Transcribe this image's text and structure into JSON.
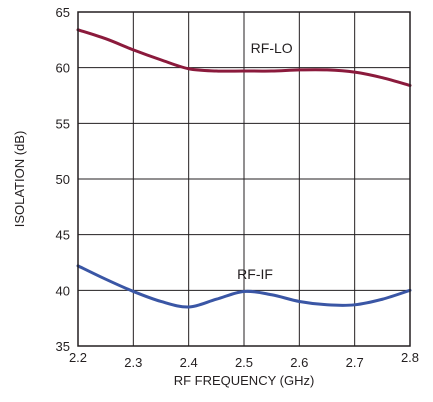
{
  "chart_data": {
    "type": "line",
    "title": "",
    "xlabel": "RF FREQUENCY (GHz)",
    "ylabel": "ISOLATION (dB)",
    "xlim": [
      2.2,
      2.8
    ],
    "ylim": [
      35,
      65
    ],
    "xticks": [
      2.2,
      2.3,
      2.4,
      2.5,
      2.6,
      2.7,
      2.8
    ],
    "yticks": [
      35,
      40,
      45,
      50,
      55,
      60,
      65
    ],
    "xtick_labels": [
      "2.2",
      "2.3",
      "2.4",
      "2.5",
      "2.6",
      "2.7",
      "2.8"
    ],
    "ytick_labels": [
      "35",
      "40",
      "45",
      "50",
      "55",
      "60",
      "65"
    ],
    "grid": true,
    "legend": "none",
    "series": [
      {
        "name": "RF-LO",
        "color": "#8b1a3c",
        "label_position": {
          "x": 2.55,
          "y": 61.3
        },
        "x": [
          2.2,
          2.25,
          2.3,
          2.35,
          2.4,
          2.45,
          2.5,
          2.55,
          2.6,
          2.65,
          2.7,
          2.75,
          2.8
        ],
        "y": [
          63.4,
          62.6,
          61.6,
          60.7,
          59.9,
          59.7,
          59.7,
          59.7,
          59.8,
          59.8,
          59.6,
          59.1,
          58.4
        ]
      },
      {
        "name": "RF-IF",
        "color": "#3a56a5",
        "label_position": {
          "x": 2.52,
          "y": 41.0
        },
        "x": [
          2.2,
          2.25,
          2.3,
          2.35,
          2.4,
          2.45,
          2.5,
          2.55,
          2.6,
          2.65,
          2.7,
          2.75,
          2.8
        ],
        "y": [
          42.2,
          41.0,
          39.9,
          39.0,
          38.5,
          39.2,
          39.9,
          39.6,
          39.0,
          38.7,
          38.7,
          39.2,
          40.0
        ]
      }
    ]
  }
}
